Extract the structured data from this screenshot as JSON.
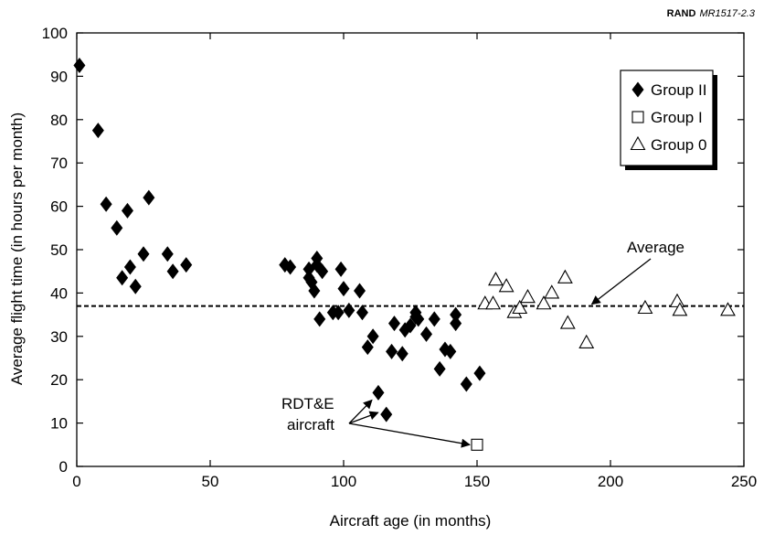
{
  "source_label": {
    "bold": "RAND",
    "rest": "MR1517-2.3"
  },
  "chart_data": {
    "type": "scatter",
    "title": "",
    "xlabel": "Aircraft age (in months)",
    "ylabel": "Average flight time (in hours per month)",
    "xlim": [
      0,
      250
    ],
    "ylim": [
      0,
      100
    ],
    "xticks": [
      0,
      50,
      100,
      150,
      200,
      250
    ],
    "yticks": [
      0,
      10,
      20,
      30,
      40,
      50,
      60,
      70,
      80,
      90,
      100
    ],
    "grid": false,
    "legend_position": "top-right",
    "average": {
      "label": "Average",
      "value": 37
    },
    "annotation": {
      "line1": "RDT&E",
      "line2": "aircraft",
      "targets": [
        [
          113,
          17
        ],
        [
          116,
          12
        ],
        [
          150,
          5
        ]
      ]
    },
    "series": [
      {
        "name": "Group II",
        "marker": "filled-diamond",
        "points": [
          [
            1,
            92.5
          ],
          [
            8,
            77.5
          ],
          [
            11,
            60.5
          ],
          [
            15,
            55
          ],
          [
            17,
            43.5
          ],
          [
            19,
            59
          ],
          [
            20,
            46
          ],
          [
            22,
            41.5
          ],
          [
            25,
            49
          ],
          [
            27,
            62
          ],
          [
            34,
            49
          ],
          [
            36,
            45
          ],
          [
            41,
            46.5
          ],
          [
            78,
            46.5
          ],
          [
            80,
            46
          ],
          [
            87,
            45.5
          ],
          [
            87,
            43.5
          ],
          [
            88,
            42.5
          ],
          [
            89,
            40.5
          ],
          [
            90,
            48
          ],
          [
            90,
            46.5
          ],
          [
            91,
            34
          ],
          [
            92,
            45
          ],
          [
            96,
            35.5
          ],
          [
            98,
            35.5
          ],
          [
            99,
            45.5
          ],
          [
            100,
            41
          ],
          [
            102,
            36
          ],
          [
            106,
            40.5
          ],
          [
            107,
            35.5
          ],
          [
            109,
            27.5
          ],
          [
            111,
            30
          ],
          [
            113,
            17
          ],
          [
            116,
            12
          ],
          [
            118,
            26.5
          ],
          [
            119,
            33
          ],
          [
            122,
            26
          ],
          [
            123,
            31.5
          ],
          [
            125,
            32.5
          ],
          [
            127,
            35.5
          ],
          [
            127,
            34.5
          ],
          [
            128,
            34
          ],
          [
            131,
            30.5
          ],
          [
            134,
            34
          ],
          [
            136,
            22.5
          ],
          [
            138,
            27
          ],
          [
            140,
            26.5
          ],
          [
            142,
            35
          ],
          [
            142,
            33
          ],
          [
            146,
            19
          ],
          [
            151,
            21.5
          ]
        ]
      },
      {
        "name": "Group I",
        "marker": "open-square",
        "points": [
          [
            150,
            5
          ]
        ]
      },
      {
        "name": "Group 0",
        "marker": "open-triangle",
        "points": [
          [
            153,
            37.5
          ],
          [
            156,
            37.5
          ],
          [
            157,
            43
          ],
          [
            161,
            41.5
          ],
          [
            164,
            35.5
          ],
          [
            166,
            36.5
          ],
          [
            169,
            39
          ],
          [
            175,
            37.5
          ],
          [
            178,
            40
          ],
          [
            183,
            43.5
          ],
          [
            184,
            33
          ],
          [
            191,
            28.5
          ],
          [
            213,
            36.5
          ],
          [
            225,
            38
          ],
          [
            226,
            36
          ],
          [
            244,
            36
          ]
        ]
      }
    ]
  }
}
